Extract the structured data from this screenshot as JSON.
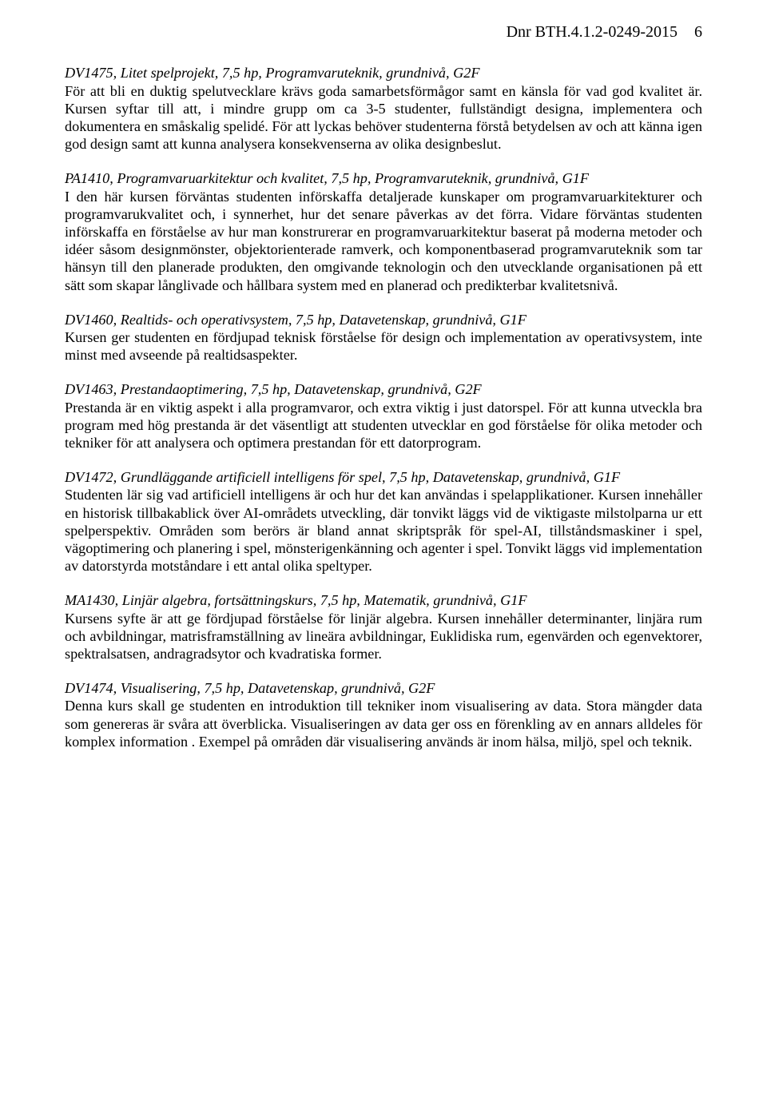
{
  "header": {
    "dnr": "Dnr BTH.4.1.2-0249-2015",
    "page": "6"
  },
  "courses": [
    {
      "heading": "DV1475, Litet spelprojekt, 7,5 hp, Programvaruteknik, grundnivå, G2F",
      "body": "För att bli en duktig spelutvecklare krävs goda samarbetsförmågor samt en känsla för vad god kvalitet är. Kursen syftar till att, i mindre grupp om ca 3-5 studenter, fullständigt designa, implementera och dokumentera en småskalig spelidé. För att lyckas behöver studenterna förstå betydelsen av och att känna igen god design samt att kunna analysera konsekvenserna av olika designbeslut."
    },
    {
      "heading": "PA1410, Programvaruarkitektur och kvalitet, 7,5 hp, Programvaruteknik, grundnivå, G1F",
      "body": "I den här kursen förväntas studenten införskaffa detaljerade kunskaper om programvaruarkitekturer och programvarukvalitet och, i synnerhet, hur det senare påverkas av det förra. Vidare förväntas studenten införskaffa en förståelse av hur man konstrurerar en programvaruarkitektur baserat på moderna metoder och idéer såsom designmönster, objektorienterade ramverk, och komponentbaserad programvaruteknik som tar hänsyn till den planerade produkten, den omgivande teknologin och den utvecklande organisationen på ett sätt som skapar långlivade och hållbara system med en planerad och predikterbar kvalitetsnivå."
    },
    {
      "heading": "DV1460, Realtids- och operativsystem, 7,5 hp, Datavetenskap, grundnivå, G1F",
      "body": "Kursen ger studenten en fördjupad teknisk förståelse för design och implementation av operativsystem, inte minst med avseende på realtidsaspekter."
    },
    {
      "heading": "DV1463, Prestandaoptimering, 7,5 hp, Datavetenskap, grundnivå, G2F",
      "body": "Prestanda är en viktig aspekt i alla programvaror, och extra viktig i just datorspel. För att kunna utveckla bra program med hög prestanda är det väsentligt att studenten utvecklar en god förståelse för olika metoder och tekniker för att analysera och optimera prestandan för ett datorprogram."
    },
    {
      "heading": "DV1472, Grundläggande artificiell intelligens för spel, 7,5 hp, Datavetenskap, grundnivå, G1F",
      "body": "Studenten lär sig vad artificiell intelligens är och hur det kan användas i spelapplikationer. Kursen innehåller en historisk tillbakablick över AI-områdets utveckling, där tonvikt läggs vid de viktigaste milstolparna ur ett spelperspektiv. Områden som berörs är bland annat skriptspråk för spel-AI, tillståndsmaskiner i spel, vägoptimering och planering i spel, mönsterigenkänning och agenter i spel. Tonvikt läggs vid implementation av datorstyrda motståndare i ett antal olika speltyper."
    },
    {
      "heading": "MA1430, Linjär algebra, fortsättningskurs, 7,5 hp, Matematik, grundnivå, G1F",
      "body": "Kursens syfte är att ge fördjupad förståelse för linjär algebra. Kursen innehåller determinanter, linjära rum och avbildningar, matrisframställning av lineära avbildningar, Euklidiska rum, egenvärden och egenvektorer, spektralsatsen, andragradsytor och kvadratiska former."
    },
    {
      "heading": "DV1474, Visualisering, 7,5 hp, Datavetenskap, grundnivå, G2F",
      "body": "Denna kurs skall ge studenten en introduktion till tekniker inom visualisering av data. Stora mängder data som genereras är svåra att överblicka. Visualiseringen av data ger oss en förenkling av en annars alldeles för komplex information . Exempel på områden där visualisering används är inom hälsa, miljö, spel och teknik."
    }
  ]
}
